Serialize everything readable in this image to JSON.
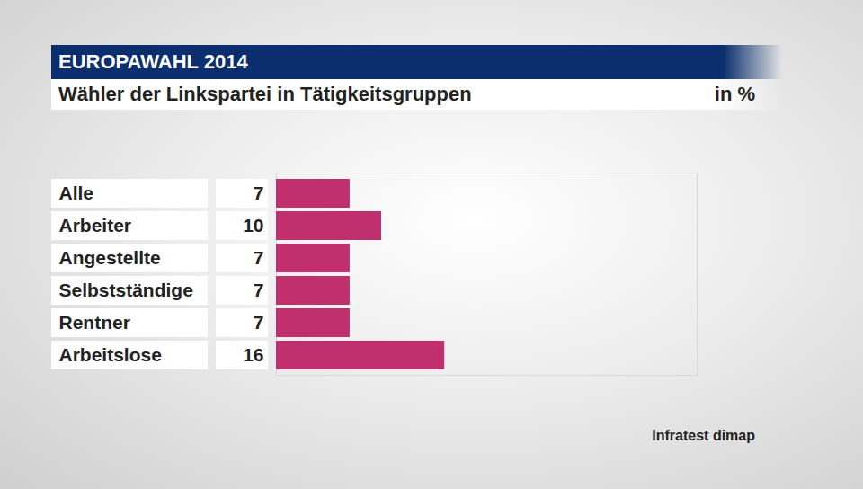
{
  "chart_data": {
    "type": "bar",
    "orientation": "horizontal",
    "title": "EUROPAWAHL 2014",
    "subtitle": "Wähler der Linkspartei in Tätigkeitsgruppen",
    "xlabel": "in %",
    "source": "Infratest dimap",
    "categories": [
      "Alle",
      "Arbeiter",
      "Angestellte",
      "Selbstständige",
      "Rentner",
      "Arbeitslose"
    ],
    "values": [
      7,
      10,
      7,
      7,
      7,
      16
    ],
    "color": "#c0306e",
    "xlim": [
      0,
      40
    ],
    "xticks": [],
    "tick_labels": false,
    "data_labels": true
  }
}
